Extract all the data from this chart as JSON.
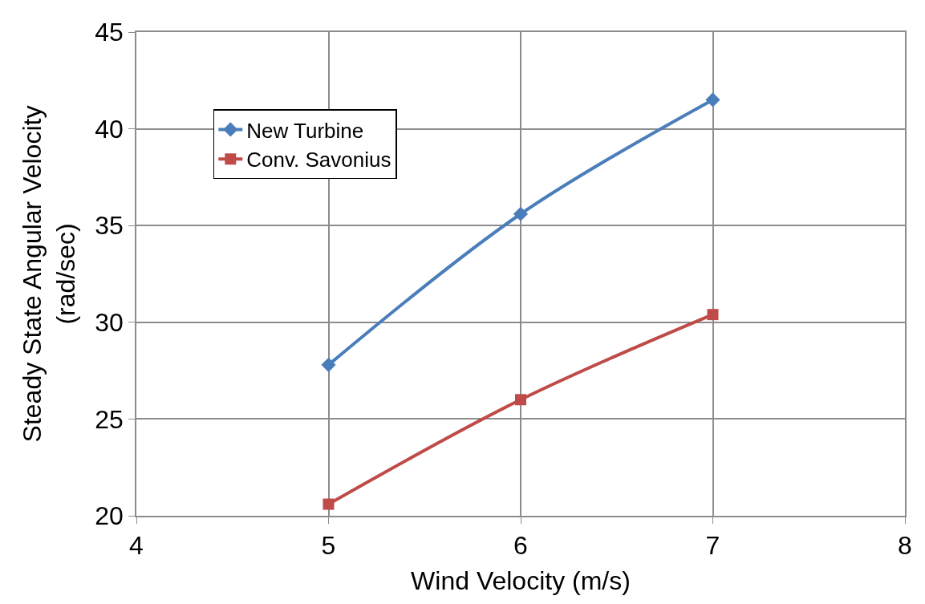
{
  "chart_data": {
    "type": "line",
    "xlabel": "Wind Velocity (m/s)",
    "ylabel": "Steady State Angular Velocity\n(rad/sec)",
    "x": [
      5,
      6,
      7
    ],
    "series": [
      {
        "name": "New Turbine",
        "color": "#4a7ebb",
        "values": [
          27.8,
          35.6,
          41.5
        ],
        "marker": "diamond"
      },
      {
        "name": "Conv. Savonius",
        "color": "#be4b48",
        "values": [
          20.6,
          26.0,
          30.4
        ],
        "marker": "square"
      }
    ],
    "xlim": [
      4,
      8
    ],
    "xticks": [
      4,
      5,
      6,
      7,
      8
    ],
    "ylim": [
      20,
      45
    ],
    "yticks": [
      20,
      25,
      30,
      35,
      40,
      45
    ],
    "grid": true,
    "legend": "top left",
    "line_style": "solid"
  }
}
